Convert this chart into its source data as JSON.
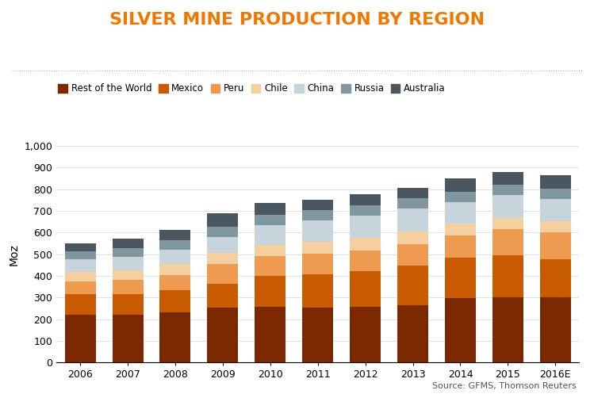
{
  "title": "SILVER MINE PRODUCTION BY REGION",
  "ylabel": "Moz",
  "source": "Source: GFMS, Thomson Reuters",
  "years": [
    "2006",
    "2007",
    "2008",
    "2009",
    "2010",
    "2011",
    "2012",
    "2013",
    "2014",
    "2015",
    "2016E"
  ],
  "series": {
    "Rest of the World": [
      220,
      220,
      232,
      252,
      258,
      255,
      258,
      265,
      298,
      302,
      300
    ],
    "Mexico": [
      95,
      97,
      103,
      112,
      143,
      153,
      162,
      182,
      185,
      192,
      178
    ],
    "Peru": [
      60,
      65,
      70,
      90,
      90,
      93,
      98,
      100,
      105,
      120,
      122
    ],
    "Chile": [
      42,
      45,
      48,
      50,
      52,
      55,
      58,
      58,
      52,
      52,
      52
    ],
    "China": [
      58,
      62,
      68,
      75,
      92,
      98,
      100,
      105,
      100,
      108,
      103
    ],
    "Russia": [
      38,
      40,
      42,
      48,
      48,
      48,
      48,
      48,
      48,
      48,
      48
    ],
    "Australia": [
      37,
      43,
      47,
      60,
      52,
      48,
      52,
      48,
      62,
      58,
      62
    ]
  },
  "colors": {
    "Rest of the World": "#7B2800",
    "Mexico": "#C85A00",
    "Peru": "#EE9A50",
    "Chile": "#F5CFA0",
    "China": "#C8D4DC",
    "Russia": "#8096A0",
    "Australia": "#4A5660"
  },
  "ylim": [
    0,
    1000
  ],
  "ytick_max": 1000,
  "ytick_step": 100,
  "title_color": "#F07800",
  "title_fontsize": 16,
  "background_color": "#FFFFFF",
  "dotted_line_color": "#AAAAAA",
  "source_fontsize": 8,
  "legend_fontsize": 8.5,
  "axis_fontsize": 9,
  "ylabel_fontsize": 10,
  "bar_width": 0.65
}
